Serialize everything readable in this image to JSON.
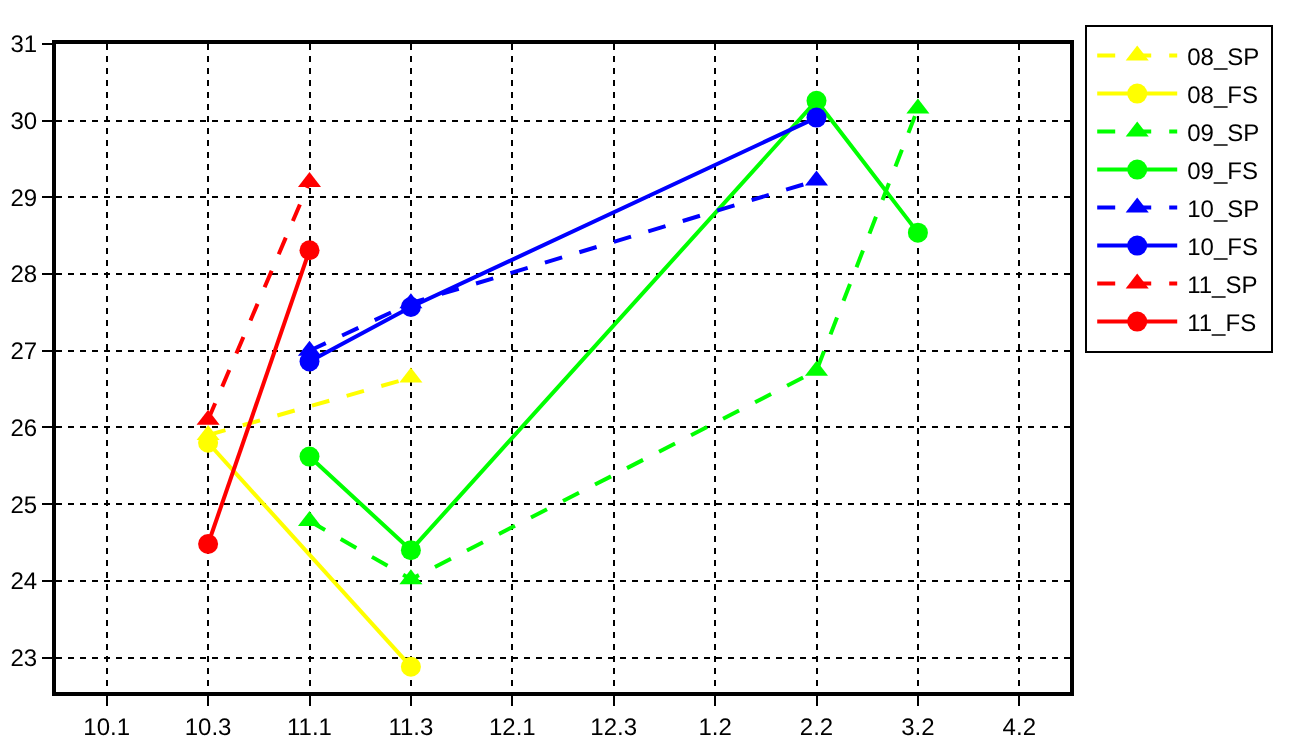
{
  "chart_data": {
    "type": "line",
    "categories": [
      "10.1",
      "10.3",
      "11.1",
      "11.3",
      "12.1",
      "12.3",
      "1.2",
      "2.2",
      "3.2",
      "4.2"
    ],
    "ylim": [
      22.55,
      31
    ],
    "yticks": [
      23,
      24,
      25,
      26,
      27,
      28,
      29,
      30,
      31
    ],
    "grid": true,
    "legend": "top right",
    "series": [
      {
        "name": "08_SP",
        "color": "#ffff00",
        "marker": "triangle",
        "line_style": "dashed",
        "x": [
          "10.3",
          "11.3"
        ],
        "values": [
          25.9,
          26.65
        ]
      },
      {
        "name": "08_FS",
        "color": "#ffff00",
        "marker": "circle",
        "line_style": "solid",
        "x": [
          "10.3",
          "11.3"
        ],
        "values": [
          25.8,
          22.88
        ]
      },
      {
        "name": "09_SP",
        "color": "#00ff00",
        "marker": "triangle",
        "line_style": "dashed",
        "x": [
          "11.1",
          "11.3",
          "2.2",
          "3.2"
        ],
        "values": [
          24.78,
          24.02,
          26.74,
          30.16
        ]
      },
      {
        "name": "09_FS",
        "color": "#00ff00",
        "marker": "circle",
        "line_style": "solid",
        "x": [
          "11.1",
          "11.3",
          "2.2",
          "3.2"
        ],
        "values": [
          25.62,
          24.4,
          30.26,
          28.54
        ]
      },
      {
        "name": "10_SP",
        "color": "#0000ff",
        "marker": "triangle",
        "line_style": "dashed",
        "x": [
          "11.1",
          "11.3",
          "2.2"
        ],
        "values": [
          27.0,
          27.62,
          29.22
        ]
      },
      {
        "name": "10_FS",
        "color": "#0000ff",
        "marker": "circle",
        "line_style": "solid",
        "x": [
          "11.1",
          "11.3",
          "2.2"
        ],
        "values": [
          26.86,
          27.57,
          30.04
        ]
      },
      {
        "name": "11_SP",
        "color": "#ff0000",
        "marker": "triangle",
        "line_style": "dashed",
        "x": [
          "10.3",
          "11.1"
        ],
        "values": [
          26.1,
          29.2
        ]
      },
      {
        "name": "11_FS",
        "color": "#ff0000",
        "marker": "circle",
        "line_style": "solid",
        "x": [
          "10.3",
          "11.1"
        ],
        "values": [
          24.48,
          28.31
        ]
      }
    ]
  }
}
